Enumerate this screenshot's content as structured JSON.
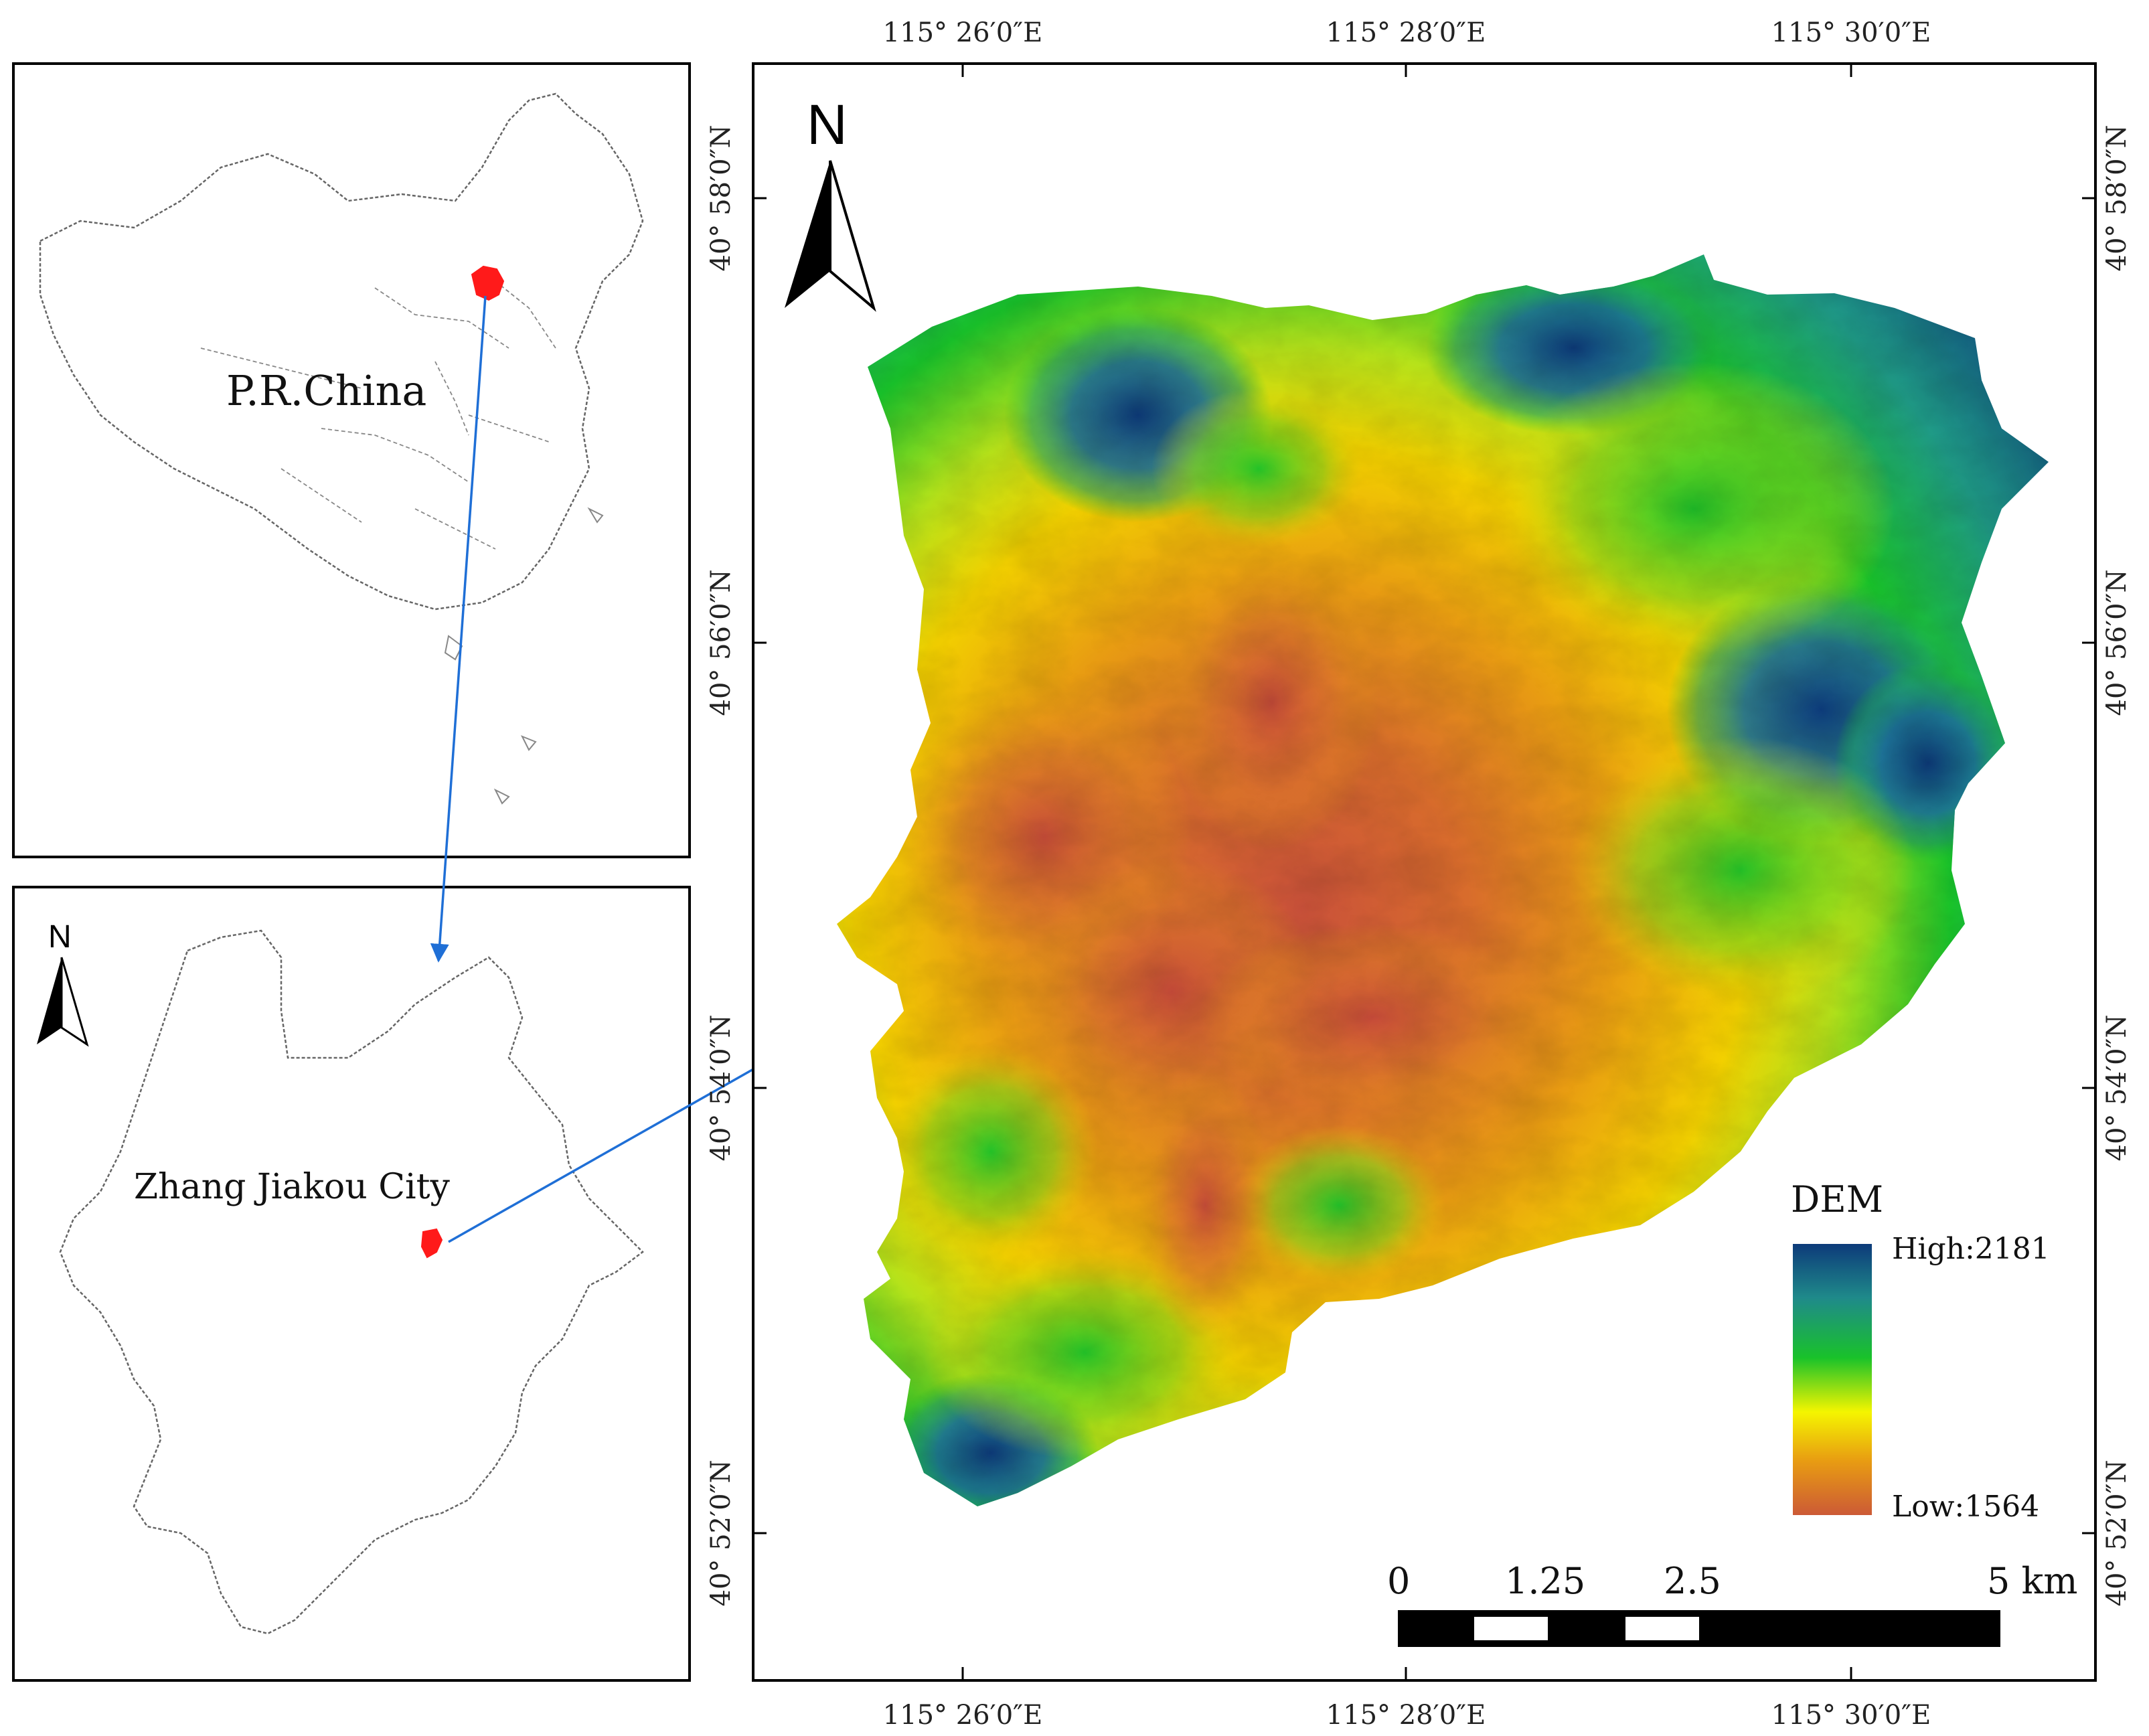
{
  "china_inset": {
    "label": "P.R.China",
    "highlight_color": "#ff1a1a"
  },
  "city_inset": {
    "label": "Zhang Jiakou City",
    "north_label": "N",
    "highlight_color": "#ff1a1a"
  },
  "main_map": {
    "north_label": "N",
    "top_ticks": [
      "115° 26′0″E",
      "115° 28′0″E",
      "115° 30′0″E"
    ],
    "bottom_ticks": [
      "115° 26′0″E",
      "115° 28′0″E",
      "115° 30′0″E"
    ],
    "left_ticks": [
      "40° 58′0″N",
      "40° 56′0″N",
      "40° 54′0″N",
      "40° 52′0″N"
    ],
    "right_ticks": [
      "40° 58′0″N",
      "40° 56′0″N",
      "40° 54′0″N",
      "40° 52′0″N"
    ],
    "legend": {
      "title": "DEM",
      "high_label": "High:2181",
      "low_label": "Low:1564",
      "colors": [
        "#0d3b7a",
        "#1f8a8a",
        "#19c22a",
        "#f5f500",
        "#e89c12",
        "#cc5a36"
      ]
    },
    "scale_bar": {
      "labels": [
        "0",
        "1.25",
        "2.5",
        "5 km"
      ]
    }
  },
  "arrow_color": "#1f6fd6"
}
